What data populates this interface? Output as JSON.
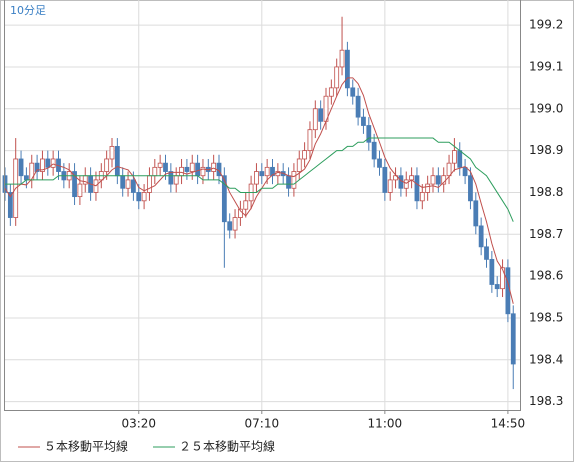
{
  "chart_data": {
    "type": "candlestick",
    "timeframe": "10分足",
    "categories": [
      null,
      null,
      null,
      null,
      null,
      null,
      null,
      null,
      null,
      null,
      null,
      null,
      null,
      null,
      null,
      null,
      null,
      null,
      null,
      null,
      null,
      null,
      null,
      null,
      null,
      "03:20",
      null,
      null,
      null,
      null,
      null,
      null,
      null,
      null,
      null,
      null,
      null,
      null,
      null,
      null,
      null,
      null,
      null,
      null,
      null,
      null,
      null,
      null,
      "07:10",
      null,
      null,
      null,
      null,
      null,
      null,
      null,
      null,
      null,
      null,
      null,
      null,
      null,
      null,
      null,
      null,
      null,
      null,
      null,
      null,
      null,
      null,
      "11:00",
      null,
      null,
      null,
      null,
      null,
      null,
      null,
      null,
      null,
      null,
      null,
      null,
      null,
      null,
      null,
      null,
      null,
      null,
      null,
      null,
      null,
      null,
      "14:50",
      null
    ],
    "open": [
      198.84,
      198.8,
      198.74,
      198.88,
      198.84,
      198.83,
      198.87,
      198.85,
      198.88,
      198.86,
      198.88,
      198.85,
      198.83,
      198.85,
      198.79,
      198.82,
      198.84,
      198.8,
      198.83,
      198.85,
      198.88,
      198.91,
      198.84,
      198.81,
      198.83,
      198.8,
      198.78,
      198.8,
      198.84,
      198.86,
      198.87,
      198.85,
      198.82,
      198.84,
      198.86,
      198.85,
      198.87,
      198.84,
      198.86,
      198.85,
      198.87,
      198.84,
      198.73,
      198.71,
      198.74,
      198.76,
      198.78,
      198.82,
      198.85,
      198.84,
      198.86,
      198.84,
      198.85,
      198.84,
      198.81,
      198.85,
      198.88,
      198.9,
      198.95,
      199.0,
      198.97,
      199.03,
      199.05,
      199.1,
      199.14,
      199.05,
      199.03,
      198.98,
      198.96,
      198.92,
      198.88,
      198.86,
      198.8,
      198.83,
      198.84,
      198.81,
      198.83,
      198.84,
      198.78,
      198.8,
      198.82,
      198.84,
      198.82,
      198.84,
      198.87,
      198.9,
      198.86,
      198.84,
      198.78,
      198.72,
      198.67,
      198.64,
      198.58,
      198.57,
      198.62,
      198.51
    ],
    "high": [
      198.86,
      198.82,
      198.93,
      198.9,
      198.86,
      198.89,
      198.89,
      198.9,
      198.9,
      198.9,
      198.9,
      198.87,
      198.87,
      198.87,
      198.84,
      198.86,
      198.86,
      198.85,
      198.87,
      198.9,
      198.93,
      198.93,
      198.86,
      198.85,
      198.85,
      198.82,
      198.82,
      198.86,
      198.88,
      198.89,
      198.89,
      198.87,
      198.86,
      198.88,
      198.88,
      198.89,
      198.89,
      198.88,
      198.88,
      198.89,
      198.89,
      198.86,
      198.75,
      198.76,
      198.78,
      198.8,
      198.84,
      198.87,
      198.87,
      198.88,
      198.88,
      198.87,
      198.87,
      198.86,
      198.87,
      198.9,
      198.92,
      198.97,
      199.02,
      199.02,
      199.05,
      199.07,
      199.12,
      199.22,
      199.16,
      199.07,
      199.05,
      199.0,
      198.98,
      198.94,
      198.9,
      198.88,
      198.85,
      198.86,
      198.86,
      198.85,
      198.86,
      198.86,
      198.82,
      198.84,
      198.86,
      198.86,
      198.86,
      198.89,
      198.93,
      198.92,
      198.88,
      198.86,
      198.8,
      198.74,
      198.69,
      198.66,
      198.6,
      198.64,
      198.64,
      198.53
    ],
    "low": [
      198.78,
      198.72,
      198.72,
      198.82,
      198.81,
      198.81,
      198.83,
      198.83,
      198.84,
      198.84,
      198.83,
      198.81,
      198.81,
      198.77,
      198.77,
      198.8,
      198.78,
      198.78,
      198.81,
      198.83,
      198.86,
      198.82,
      198.79,
      198.79,
      198.78,
      198.76,
      198.76,
      198.78,
      198.82,
      198.84,
      198.83,
      198.8,
      198.8,
      198.82,
      198.83,
      198.83,
      198.82,
      198.82,
      198.83,
      198.83,
      198.82,
      198.62,
      198.69,
      198.69,
      198.72,
      198.74,
      198.76,
      198.8,
      198.82,
      198.82,
      198.82,
      198.82,
      198.82,
      198.79,
      198.79,
      198.83,
      198.86,
      198.88,
      198.93,
      198.95,
      198.95,
      199.01,
      199.03,
      199.08,
      199.03,
      199.01,
      198.96,
      198.94,
      198.9,
      198.86,
      198.84,
      198.78,
      198.78,
      198.81,
      198.79,
      198.79,
      198.81,
      198.76,
      198.76,
      198.78,
      198.8,
      198.8,
      198.8,
      198.82,
      198.85,
      198.84,
      198.82,
      198.76,
      198.7,
      198.65,
      198.62,
      198.56,
      198.55,
      198.55,
      198.49,
      198.33
    ],
    "close": [
      198.8,
      198.74,
      198.88,
      198.84,
      198.83,
      198.87,
      198.85,
      198.88,
      198.86,
      198.88,
      198.85,
      198.83,
      198.85,
      198.79,
      198.82,
      198.84,
      198.8,
      198.83,
      198.85,
      198.88,
      198.91,
      198.84,
      198.81,
      198.83,
      198.8,
      198.78,
      198.8,
      198.84,
      198.86,
      198.87,
      198.85,
      198.82,
      198.84,
      198.86,
      198.85,
      198.87,
      198.84,
      198.86,
      198.85,
      198.87,
      198.84,
      198.73,
      198.71,
      198.74,
      198.76,
      198.78,
      198.82,
      198.85,
      198.84,
      198.86,
      198.84,
      198.85,
      198.84,
      198.81,
      198.85,
      198.88,
      198.9,
      198.95,
      199.0,
      198.97,
      199.03,
      199.05,
      199.1,
      199.14,
      199.05,
      199.03,
      198.98,
      198.96,
      198.92,
      198.88,
      198.86,
      198.8,
      198.83,
      198.84,
      198.81,
      198.83,
      198.84,
      198.78,
      198.8,
      198.82,
      198.84,
      198.82,
      198.84,
      198.87,
      198.9,
      198.86,
      198.84,
      198.78,
      198.72,
      198.67,
      198.64,
      198.58,
      198.57,
      198.62,
      198.51,
      198.39
    ],
    "up_color": "#c0504d",
    "down_color": "#4a7db5",
    "series": [
      {
        "name": "５本移動平均線",
        "color": "#c0504d",
        "values": [
          198.81,
          198.79,
          198.81,
          198.82,
          198.818,
          198.832,
          198.854,
          198.854,
          198.858,
          198.868,
          198.864,
          198.86,
          198.854,
          198.84,
          198.828,
          198.826,
          198.82,
          198.816,
          198.828,
          198.84,
          198.854,
          198.862,
          198.858,
          198.854,
          198.838,
          198.812,
          198.804,
          198.81,
          198.816,
          198.83,
          198.844,
          198.848,
          198.848,
          198.848,
          198.844,
          198.848,
          198.852,
          198.856,
          198.854,
          198.858,
          198.852,
          198.83,
          198.8,
          198.778,
          198.756,
          198.744,
          198.762,
          198.79,
          198.81,
          198.83,
          198.842,
          198.848,
          198.846,
          198.84,
          198.838,
          198.846,
          198.856,
          198.878,
          198.916,
          198.94,
          198.97,
          199.0,
          199.03,
          199.058,
          199.074,
          199.074,
          199.06,
          199.032,
          198.988,
          198.954,
          198.92,
          198.884,
          198.858,
          198.842,
          198.828,
          198.822,
          198.83,
          198.82,
          198.812,
          198.814,
          198.816,
          198.812,
          198.824,
          198.838,
          198.854,
          198.858,
          198.862,
          198.85,
          198.82,
          198.774,
          198.73,
          198.678,
          198.636,
          198.616,
          198.584,
          198.534
        ]
      },
      {
        "name": "２５本移動平均線",
        "color": "#2e9e5e",
        "values": [
          198.82,
          198.82,
          198.82,
          198.82,
          198.83,
          198.83,
          198.83,
          198.83,
          198.83,
          198.83,
          198.84,
          198.84,
          198.84,
          198.84,
          198.84,
          198.84,
          198.84,
          198.84,
          198.84,
          198.84,
          198.84,
          198.84,
          198.84,
          198.84,
          198.84,
          198.84,
          198.84,
          198.84,
          198.84,
          198.84,
          198.84,
          198.84,
          198.84,
          198.84,
          198.84,
          198.84,
          198.84,
          198.83,
          198.83,
          198.83,
          198.83,
          198.82,
          198.81,
          198.81,
          198.8,
          198.8,
          198.8,
          198.8,
          198.81,
          198.81,
          198.81,
          198.82,
          198.82,
          198.82,
          198.82,
          198.83,
          198.84,
          198.85,
          198.86,
          198.87,
          198.88,
          198.89,
          198.9,
          198.9,
          198.91,
          198.91,
          198.92,
          198.92,
          198.93,
          198.93,
          198.93,
          198.93,
          198.93,
          198.93,
          198.93,
          198.93,
          198.93,
          198.93,
          198.93,
          198.93,
          198.93,
          198.92,
          198.92,
          198.92,
          198.91,
          198.9,
          198.89,
          198.88,
          198.86,
          198.85,
          198.84,
          198.82,
          198.8,
          198.78,
          198.76,
          198.73
        ]
      }
    ],
    "ylim": [
      198.28,
      199.26
    ],
    "yticks": [
      198.3,
      198.4,
      198.5,
      198.6,
      198.7,
      198.8,
      198.9,
      {
        "value": 199.0,
        "label": "199.0"
      },
      199.1,
      199.2
    ],
    "grid": true
  }
}
